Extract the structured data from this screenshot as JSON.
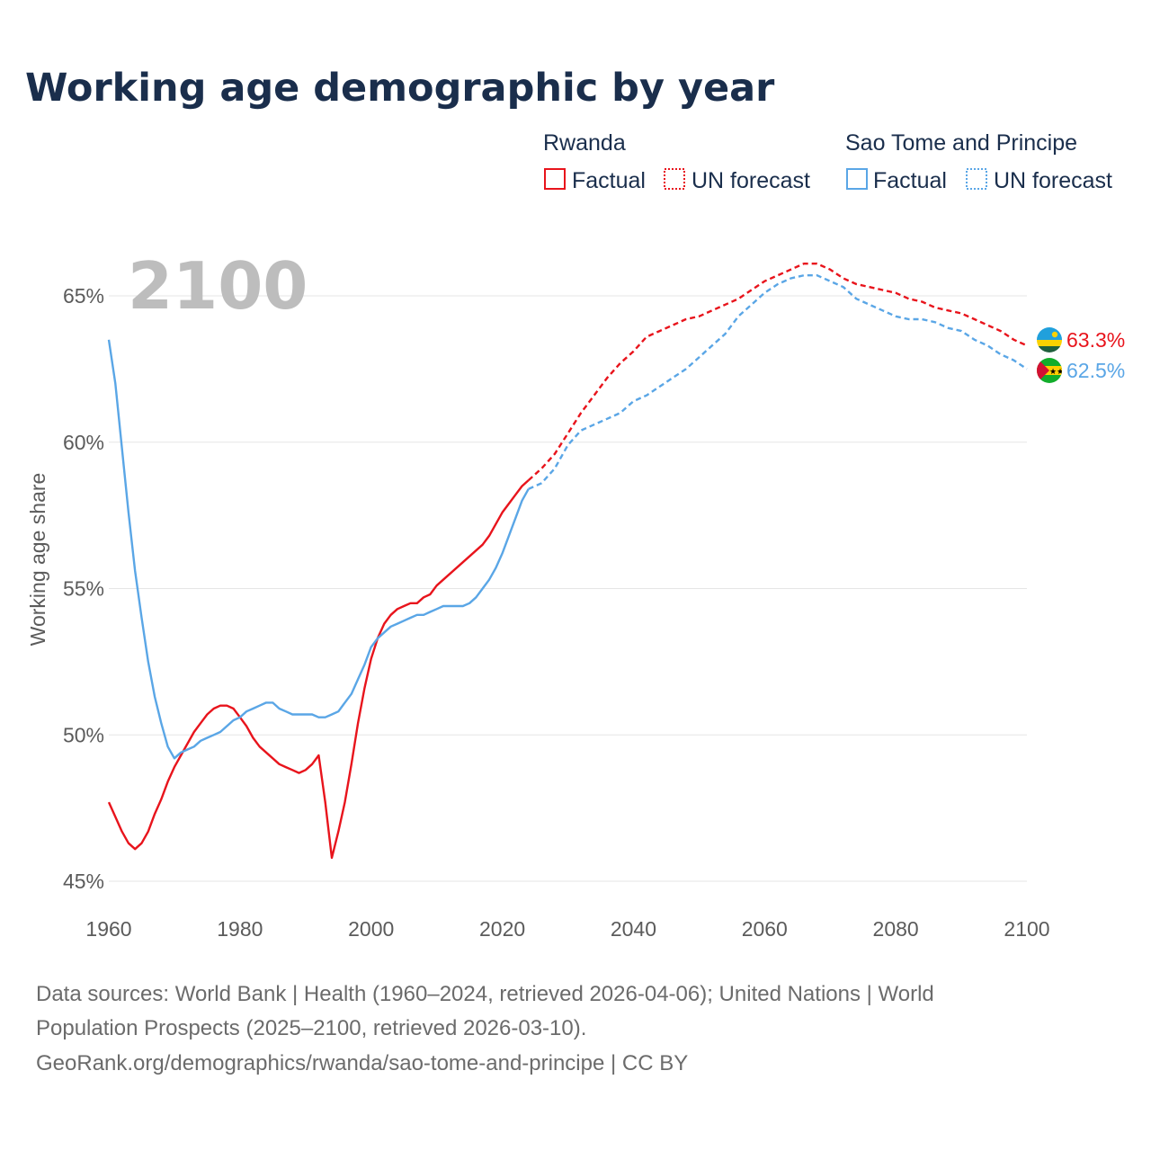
{
  "header": {
    "title": "Working age demographic by year"
  },
  "legend": {
    "groups": [
      {
        "country": "Rwanda",
        "color": "#e8141c",
        "factual_label": "Factual",
        "forecast_label": "UN forecast"
      },
      {
        "country": "Sao Tome and Principe",
        "color": "#5aa6e6",
        "factual_label": "Factual",
        "forecast_label": "UN forecast"
      }
    ]
  },
  "year_watermark": "2100",
  "footer": {
    "source_line1": "Data sources: World Bank | Health (1960–2024, retrieved 2026-04-06); United Nations | World",
    "source_line2": "Population Prospects (2025–2100, retrieved 2026-03-10).",
    "source_line3": "GeoRank.org/demographics/rwanda/sao-tome-and-principe | CC BY"
  },
  "chart_data": {
    "type": "line",
    "title": "Working age demographic by year",
    "xlabel": "",
    "ylabel": "Working age share",
    "xlim": [
      1960,
      2100
    ],
    "ylim": [
      45,
      66
    ],
    "x_ticks": [
      1960,
      1980,
      2000,
      2020,
      2040,
      2060,
      2080,
      2100
    ],
    "x_tick_labels": [
      "1960",
      "1980",
      "2000",
      "2020",
      "2040",
      "2060",
      "2080",
      "2100"
    ],
    "y_ticks": [
      45,
      50,
      55,
      60,
      65
    ],
    "y_tick_labels": [
      "45%",
      "50%",
      "55%",
      "60%",
      "65%"
    ],
    "grid": true,
    "legend_position": "top-right",
    "series": [
      {
        "name": "Rwanda",
        "color": "#e8141c",
        "end_label": "63.3%",
        "flag": "rwanda-flag-icon",
        "factual": {
          "x": [
            1960,
            1961,
            1962,
            1963,
            1964,
            1965,
            1966,
            1967,
            1968,
            1969,
            1970,
            1971,
            1972,
            1973,
            1974,
            1975,
            1976,
            1977,
            1978,
            1979,
            1980,
            1981,
            1982,
            1983,
            1984,
            1985,
            1986,
            1987,
            1988,
            1989,
            1990,
            1991,
            1992,
            1993,
            1994,
            1995,
            1996,
            1997,
            1998,
            1999,
            2000,
            2001,
            2002,
            2003,
            2004,
            2005,
            2006,
            2007,
            2008,
            2009,
            2010,
            2011,
            2012,
            2013,
            2014,
            2015,
            2016,
            2017,
            2018,
            2019,
            2020,
            2021,
            2022,
            2023,
            2024
          ],
          "y": [
            47.7,
            47.2,
            46.7,
            46.3,
            46.1,
            46.3,
            46.7,
            47.3,
            47.8,
            48.4,
            48.9,
            49.3,
            49.7,
            50.1,
            50.4,
            50.7,
            50.9,
            51.0,
            51.0,
            50.9,
            50.6,
            50.3,
            49.9,
            49.6,
            49.4,
            49.2,
            49.0,
            48.9,
            48.8,
            48.7,
            48.8,
            49.0,
            49.3,
            47.7,
            45.8,
            46.7,
            47.7,
            49.0,
            50.4,
            51.6,
            52.6,
            53.3,
            53.8,
            54.1,
            54.3,
            54.4,
            54.5,
            54.5,
            54.7,
            54.8,
            55.1,
            55.3,
            55.5,
            55.7,
            55.9,
            56.1,
            56.3,
            56.5,
            56.8,
            57.2,
            57.6,
            57.9,
            58.2,
            58.5,
            58.7
          ]
        },
        "forecast": {
          "x": [
            2024,
            2026,
            2028,
            2030,
            2032,
            2034,
            2036,
            2038,
            2040,
            2042,
            2044,
            2046,
            2048,
            2050,
            2052,
            2054,
            2056,
            2058,
            2060,
            2062,
            2064,
            2066,
            2068,
            2070,
            2072,
            2074,
            2076,
            2078,
            2080,
            2082,
            2084,
            2086,
            2088,
            2090,
            2092,
            2094,
            2096,
            2098,
            2100
          ],
          "y": [
            58.7,
            59.1,
            59.6,
            60.3,
            61.0,
            61.6,
            62.2,
            62.7,
            63.1,
            63.6,
            63.8,
            64.0,
            64.2,
            64.3,
            64.5,
            64.7,
            64.9,
            65.2,
            65.5,
            65.7,
            65.9,
            66.1,
            66.1,
            65.9,
            65.6,
            65.4,
            65.3,
            65.2,
            65.1,
            64.9,
            64.8,
            64.6,
            64.5,
            64.4,
            64.2,
            64.0,
            63.8,
            63.5,
            63.3
          ]
        }
      },
      {
        "name": "Sao Tome and Principe",
        "color": "#5aa6e6",
        "end_label": "62.5%",
        "flag": "sao-tome-flag-icon",
        "factual": {
          "x": [
            1960,
            1961,
            1962,
            1963,
            1964,
            1965,
            1966,
            1967,
            1968,
            1969,
            1970,
            1971,
            1972,
            1973,
            1974,
            1975,
            1976,
            1977,
            1978,
            1979,
            1980,
            1981,
            1982,
            1983,
            1984,
            1985,
            1986,
            1987,
            1988,
            1989,
            1990,
            1991,
            1992,
            1993,
            1994,
            1995,
            1996,
            1997,
            1998,
            1999,
            2000,
            2001,
            2002,
            2003,
            2004,
            2005,
            2006,
            2007,
            2008,
            2009,
            2010,
            2011,
            2012,
            2013,
            2014,
            2015,
            2016,
            2017,
            2018,
            2019,
            2020,
            2021,
            2022,
            2023,
            2024
          ],
          "y": [
            63.5,
            62.0,
            59.8,
            57.6,
            55.6,
            54.0,
            52.5,
            51.3,
            50.4,
            49.6,
            49.2,
            49.4,
            49.5,
            49.6,
            49.8,
            49.9,
            50.0,
            50.1,
            50.3,
            50.5,
            50.6,
            50.8,
            50.9,
            51.0,
            51.1,
            51.1,
            50.9,
            50.8,
            50.7,
            50.7,
            50.7,
            50.7,
            50.6,
            50.6,
            50.7,
            50.8,
            51.1,
            51.4,
            51.9,
            52.4,
            53.0,
            53.3,
            53.5,
            53.7,
            53.8,
            53.9,
            54.0,
            54.1,
            54.1,
            54.2,
            54.3,
            54.4,
            54.4,
            54.4,
            54.4,
            54.5,
            54.7,
            55.0,
            55.3,
            55.7,
            56.2,
            56.8,
            57.4,
            58.0,
            58.4
          ]
        },
        "forecast": {
          "x": [
            2024,
            2026,
            2028,
            2030,
            2032,
            2034,
            2036,
            2038,
            2040,
            2042,
            2044,
            2046,
            2048,
            2050,
            2052,
            2054,
            2056,
            2058,
            2060,
            2062,
            2064,
            2066,
            2068,
            2070,
            2072,
            2074,
            2076,
            2078,
            2080,
            2082,
            2084,
            2086,
            2088,
            2090,
            2092,
            2094,
            2096,
            2098,
            2100
          ],
          "y": [
            58.4,
            58.6,
            59.1,
            59.9,
            60.4,
            60.6,
            60.8,
            61.0,
            61.4,
            61.6,
            61.9,
            62.2,
            62.5,
            62.9,
            63.3,
            63.7,
            64.3,
            64.7,
            65.1,
            65.4,
            65.6,
            65.7,
            65.7,
            65.5,
            65.3,
            64.9,
            64.7,
            64.5,
            64.3,
            64.2,
            64.2,
            64.1,
            63.9,
            63.8,
            63.5,
            63.3,
            63.0,
            62.8,
            62.5
          ]
        }
      }
    ]
  }
}
